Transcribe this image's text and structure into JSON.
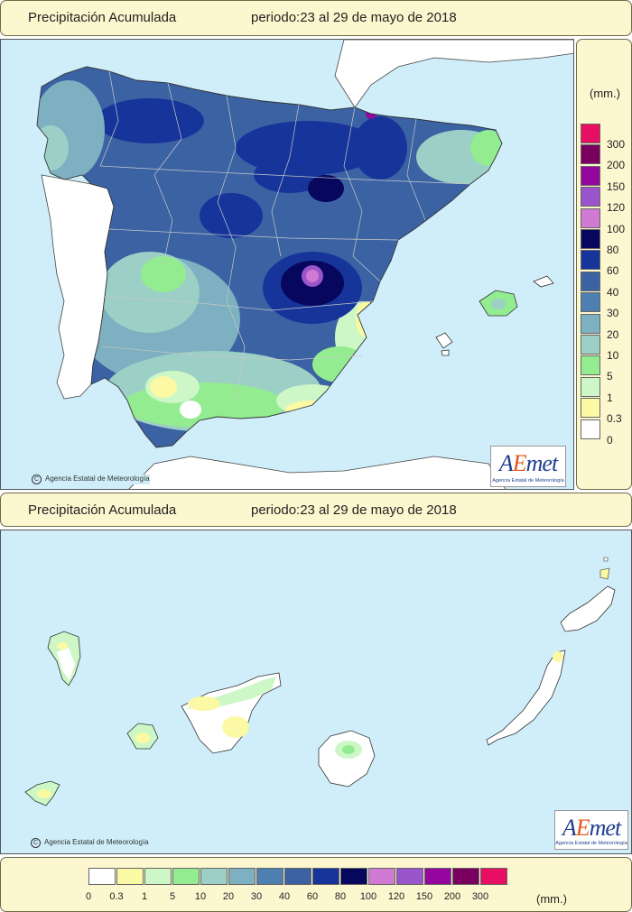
{
  "top": {
    "title": "Precipitación Acumulada",
    "period": "periodo:23 al 29 de mayo de 2018",
    "credit": "Agencia Estatal de Meteorología",
    "logo": "AEmet",
    "logo_sub": "Agencia Estatal de Meteorología"
  },
  "bottom": {
    "title": "Precipitación Acumulada",
    "period": "periodo:23 al 29 de mayo de 2018",
    "credit": "Agencia Estatal de Meteorología",
    "logo": "AEmet",
    "logo_sub": "Agencia Estatal de Meteorología"
  },
  "legend": {
    "unit": "(mm.)",
    "classes": [
      {
        "label": "0",
        "color": "#ffffff"
      },
      {
        "label": "0.3",
        "color": "#fbf9a3"
      },
      {
        "label": "1",
        "color": "#cdf7c7"
      },
      {
        "label": "5",
        "color": "#93ec8f"
      },
      {
        "label": "10",
        "color": "#9ccfc6"
      },
      {
        "label": "20",
        "color": "#7db0c0"
      },
      {
        "label": "30",
        "color": "#4d7fb0"
      },
      {
        "label": "40",
        "color": "#3b63a4"
      },
      {
        "label": "60",
        "color": "#16349a"
      },
      {
        "label": "80",
        "color": "#07075e"
      },
      {
        "label": "100",
        "color": "#d07ad3"
      },
      {
        "label": "120",
        "color": "#9a55cc"
      },
      {
        "label": "150",
        "color": "#94069e"
      },
      {
        "label": "200",
        "color": "#7a0060"
      },
      {
        "label": "300",
        "color": "#e80e63"
      }
    ]
  },
  "colors": {
    "sea": "#cfeefa",
    "panel": "#fdf7cf",
    "border": "#6b6b4a"
  }
}
